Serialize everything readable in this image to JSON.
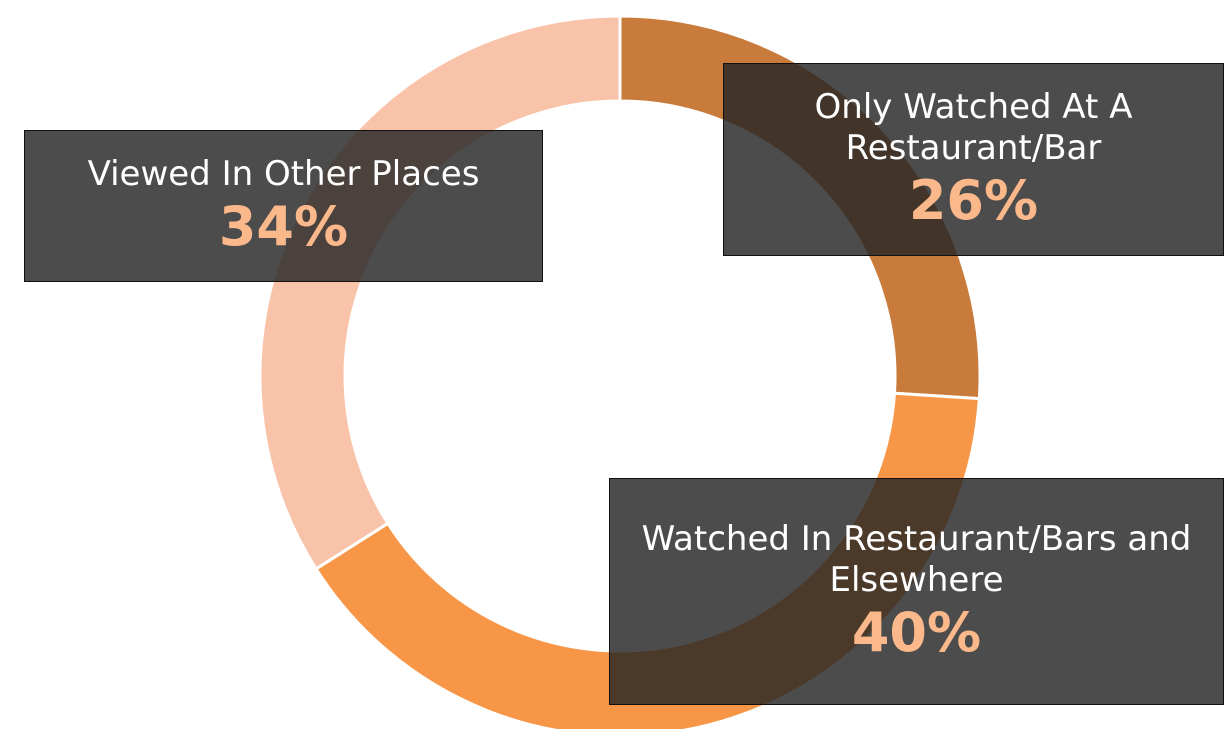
{
  "chart_data": {
    "type": "donut",
    "categories": [
      "Only Watched At A Restaurant/Bar",
      "Watched In Restaurant/Bars and Elsewhere",
      "Viewed In Other Places"
    ],
    "values": [
      26,
      40,
      34
    ],
    "value_labels": [
      "26%",
      "40%",
      "34%"
    ],
    "colors": [
      "#c97b3b",
      "#f79646",
      "#f9c3a9"
    ]
  }
}
